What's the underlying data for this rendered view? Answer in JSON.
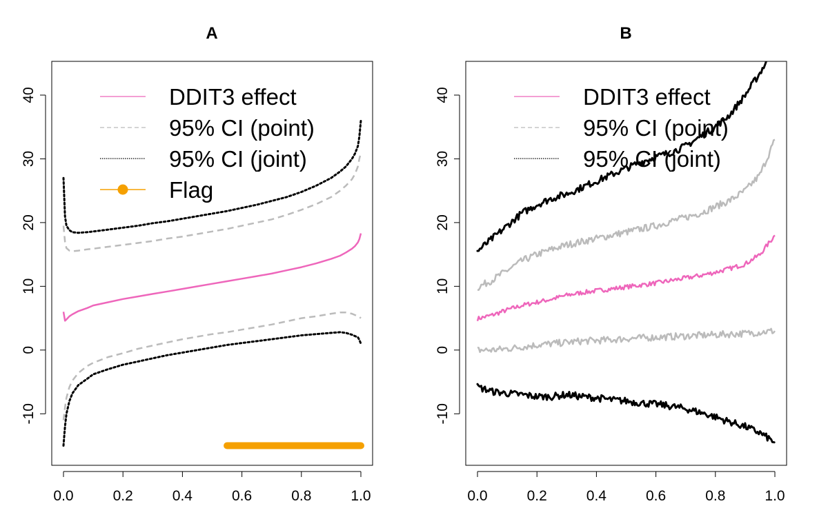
{
  "chart_data": [
    {
      "type": "line",
      "title": "A",
      "xlabel": "",
      "ylabel": "",
      "xlim": [
        0,
        1
      ],
      "ylim": [
        -17,
        48
      ],
      "x_ticks": [
        0.0,
        0.2,
        0.4,
        0.6,
        0.8,
        1.0
      ],
      "x_tick_labels": [
        "0.0",
        "0.2",
        "0.4",
        "0.6",
        "0.8",
        "1.0"
      ],
      "y_ticks": [
        -10,
        0,
        10,
        20,
        30,
        40
      ],
      "y_tick_labels": [
        "-10",
        "0",
        "10",
        "20",
        "30",
        "40"
      ],
      "legend_position": "top",
      "legend": [
        {
          "label": "DDIT3 effect",
          "color": "#ee66bb",
          "style": "solid"
        },
        {
          "label": "95% CI (point)",
          "color": "#bbbbbb",
          "style": "dashed"
        },
        {
          "label": "95% CI (joint)",
          "color": "#000000",
          "style": "dotted"
        },
        {
          "label": "Flag",
          "color": "#f5a000",
          "style": "line-dot"
        }
      ],
      "x": [
        0.0,
        0.005,
        0.01,
        0.02,
        0.03,
        0.05,
        0.08,
        0.1,
        0.15,
        0.2,
        0.25,
        0.3,
        0.35,
        0.4,
        0.45,
        0.5,
        0.55,
        0.6,
        0.65,
        0.7,
        0.75,
        0.8,
        0.85,
        0.9,
        0.93,
        0.95,
        0.97,
        0.98,
        0.99,
        0.995,
        1.0
      ],
      "series": [
        {
          "name": "DDIT3 effect",
          "color": "#ee66bb",
          "style": "solid",
          "values": [
            6.0,
            4.6,
            4.8,
            5.3,
            5.6,
            6.1,
            6.6,
            7.0,
            7.5,
            8.0,
            8.4,
            8.8,
            9.2,
            9.6,
            10.0,
            10.4,
            10.8,
            11.2,
            11.6,
            12.0,
            12.5,
            13.0,
            13.6,
            14.3,
            14.8,
            15.3,
            15.9,
            16.3,
            16.9,
            17.4,
            18.3
          ]
        },
        {
          "name": "95% CI (point)",
          "color": "#bbbbbb",
          "style": "dashed",
          "values": [
            19.5,
            17.0,
            16.0,
            15.6,
            15.5,
            15.6,
            15.8,
            15.9,
            16.2,
            16.5,
            16.8,
            17.1,
            17.5,
            17.8,
            18.2,
            18.6,
            19.0,
            19.5,
            20.0,
            20.5,
            21.2,
            22.0,
            22.9,
            24.0,
            25.0,
            25.8,
            26.8,
            27.6,
            28.8,
            30.0,
            31.0
          ]
        },
        {
          "name": "95% CI (point)",
          "color": "#bbbbbb",
          "style": "dashed",
          "values": [
            -11.0,
            -9.0,
            -7.5,
            -5.8,
            -4.8,
            -3.6,
            -2.5,
            -2.0,
            -1.1,
            -0.5,
            0.2,
            0.7,
            1.2,
            1.7,
            2.1,
            2.5,
            2.8,
            3.2,
            3.6,
            4.0,
            4.5,
            5.0,
            5.3,
            5.7,
            5.9,
            5.9,
            5.7,
            5.5,
            5.3,
            5.2,
            5.0
          ]
        },
        {
          "name": "95% CI (joint)",
          "color": "#000000",
          "style": "dotted",
          "values": [
            27.0,
            21.0,
            19.5,
            18.8,
            18.5,
            18.4,
            18.5,
            18.6,
            18.9,
            19.2,
            19.5,
            19.9,
            20.2,
            20.6,
            21.0,
            21.4,
            21.8,
            22.3,
            22.8,
            23.4,
            24.0,
            24.8,
            25.8,
            27.0,
            28.0,
            28.8,
            30.0,
            30.8,
            32.0,
            33.5,
            36.0
          ]
        },
        {
          "name": "95% CI (joint)",
          "color": "#000000",
          "style": "dotted",
          "values": [
            -15.0,
            -12.0,
            -10.0,
            -8.0,
            -6.8,
            -5.5,
            -4.5,
            -3.8,
            -3.0,
            -2.3,
            -1.8,
            -1.3,
            -0.8,
            -0.4,
            0.0,
            0.4,
            0.8,
            1.1,
            1.4,
            1.7,
            2.0,
            2.3,
            2.5,
            2.7,
            2.8,
            2.7,
            2.4,
            2.2,
            2.0,
            1.6,
            1.0
          ]
        }
      ],
      "flag": {
        "color": "#f5a000",
        "y": -15,
        "x_range": [
          0.55,
          1.0
        ]
      }
    },
    {
      "type": "line",
      "title": "B",
      "xlabel": "",
      "ylabel": "",
      "xlim": [
        0,
        1
      ],
      "ylim": [
        -17,
        48
      ],
      "x_ticks": [
        0.0,
        0.2,
        0.4,
        0.6,
        0.8,
        1.0
      ],
      "x_tick_labels": [
        "0.0",
        "0.2",
        "0.4",
        "0.6",
        "0.8",
        "1.0"
      ],
      "y_ticks": [
        -10,
        0,
        10,
        20,
        30,
        40
      ],
      "y_tick_labels": [
        "-10",
        "0",
        "10",
        "20",
        "30",
        "40"
      ],
      "legend_position": "top",
      "legend": [
        {
          "label": "DDIT3 effect",
          "color": "#ee66bb",
          "style": "solid"
        },
        {
          "label": "95% CI (point)",
          "color": "#bbbbbb",
          "style": "dashed"
        },
        {
          "label": "95% CI (joint)",
          "color": "#000000",
          "style": "dotted"
        }
      ],
      "x": [
        0.0,
        0.05,
        0.1,
        0.15,
        0.2,
        0.25,
        0.3,
        0.35,
        0.4,
        0.45,
        0.5,
        0.55,
        0.6,
        0.65,
        0.7,
        0.75,
        0.8,
        0.85,
        0.9,
        0.95,
        1.0
      ],
      "series": [
        {
          "name": "DDIT3 effect",
          "color": "#ee66bb",
          "style": "solid",
          "values": [
            4.9,
            5.5,
            6.3,
            7.0,
            7.5,
            8.0,
            8.6,
            9.0,
            9.3,
            9.6,
            9.9,
            10.2,
            10.5,
            10.9,
            11.3,
            11.7,
            12.2,
            12.8,
            13.5,
            15.0,
            18.0
          ]
        },
        {
          "name": "95% CI (point)",
          "color": "#bbbbbb",
          "style": "dashed",
          "values": [
            9.8,
            11.0,
            12.5,
            14.0,
            15.0,
            15.8,
            16.5,
            17.0,
            17.5,
            18.0,
            18.5,
            19.0,
            19.5,
            20.2,
            20.8,
            21.5,
            22.5,
            23.5,
            25.0,
            27.5,
            33.0
          ]
        },
        {
          "name": "95% CI (point)",
          "color": "#bbbbbb",
          "style": "dashed",
          "values": [
            0.0,
            0.0,
            0.2,
            0.5,
            0.8,
            1.0,
            1.2,
            1.4,
            1.5,
            1.6,
            1.8,
            1.9,
            2.0,
            2.1,
            2.2,
            2.3,
            2.4,
            2.5,
            2.6,
            2.8,
            3.0
          ]
        },
        {
          "name": "95% CI (joint)",
          "color": "#000000",
          "style": "dotted",
          "values": [
            15.5,
            17.5,
            19.5,
            21.5,
            22.8,
            23.8,
            24.5,
            25.5,
            26.5,
            27.5,
            28.5,
            29.5,
            30.3,
            31.0,
            32.0,
            33.5,
            35.0,
            37.0,
            40.0,
            43.5,
            47.5
          ]
        },
        {
          "name": "95% CI (joint)",
          "color": "#000000",
          "style": "dotted",
          "values": [
            -5.8,
            -6.5,
            -6.8,
            -7.0,
            -7.3,
            -7.3,
            -7.0,
            -7.3,
            -7.5,
            -7.8,
            -8.0,
            -8.3,
            -8.5,
            -8.8,
            -9.2,
            -9.8,
            -10.5,
            -11.3,
            -12.0,
            -13.0,
            -14.5
          ]
        }
      ]
    }
  ]
}
